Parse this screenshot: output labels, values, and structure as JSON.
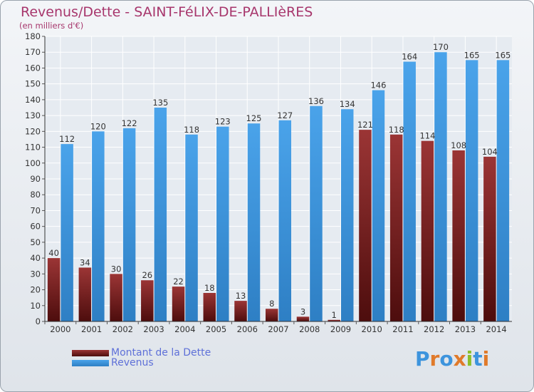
{
  "header": {
    "title": "Revenus/Dette - SAINT-FéLIX-DE-PALLIèRES",
    "subtitle": "(en milliers d'€)"
  },
  "chart_data": {
    "type": "bar",
    "title": "Revenus/Dette - SAINT-FéLIX-DE-PALLIèRES",
    "subtitle": "(en milliers d'€)",
    "xlabel": "",
    "ylabel": "",
    "categories": [
      "2000",
      "2001",
      "2002",
      "2003",
      "2004",
      "2005",
      "2006",
      "2007",
      "2008",
      "2009",
      "2010",
      "2011",
      "2012",
      "2013",
      "2014"
    ],
    "series": [
      {
        "name": "Montant de la Dette",
        "color": "#7a1f1f",
        "values": [
          40,
          34,
          30,
          26,
          22,
          18,
          13,
          8,
          3,
          1,
          121,
          118,
          114,
          108,
          104
        ]
      },
      {
        "name": "Revenus",
        "color": "#3d94dd",
        "values": [
          112,
          120,
          122,
          135,
          118,
          123,
          125,
          127,
          136,
          134,
          146,
          164,
          170,
          165,
          165
        ]
      }
    ],
    "ylim": [
      0,
      180
    ],
    "ytick_step": 10,
    "grid": true,
    "legend_position": "bottom-left"
  },
  "legend": {
    "items": [
      {
        "label": "Montant de la Dette",
        "color": "#7a1f1f"
      },
      {
        "label": "Revenus",
        "color": "#3d94dd"
      }
    ]
  },
  "logo": {
    "text": "Proxiti",
    "colors": [
      "#3d94dd",
      "#e07a2a",
      "#3d94dd",
      "#e07a2a",
      "#8bbf2a",
      "#3d94dd",
      "#e07a2a"
    ]
  }
}
